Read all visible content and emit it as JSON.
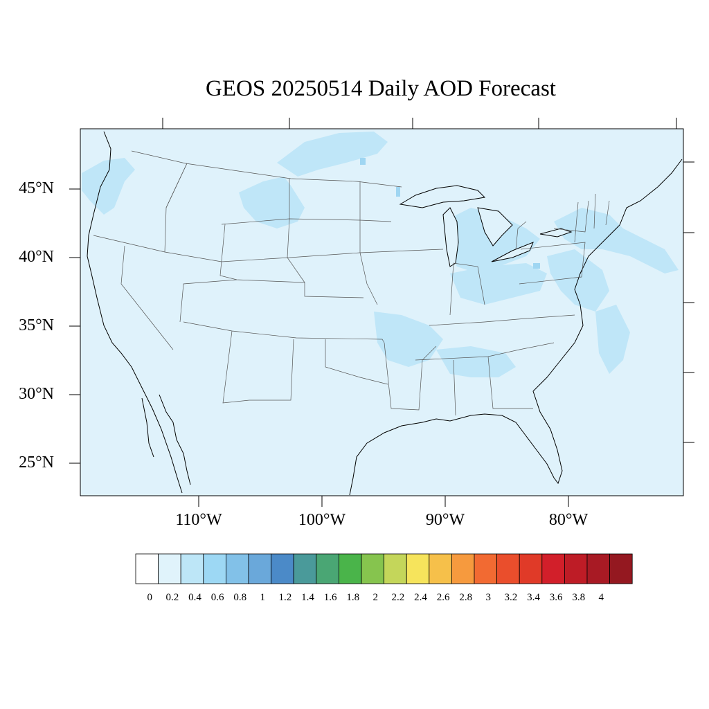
{
  "map": {
    "title": "GEOS 20250514 Daily AOD Forecast",
    "lat_labels": [
      "45°N",
      "40°N",
      "35°N",
      "30°N",
      "25°N"
    ],
    "lon_labels": [
      "110°W",
      "100°W",
      "90°W",
      "80°W"
    ],
    "background_value_color": "#dff2fb",
    "elevated_value_color": "#bfe6f8",
    "peak_value_color": "#9fd6f2"
  },
  "colorbar": {
    "labels": [
      "0",
      "0.2",
      "0.4",
      "0.6",
      "0.8",
      "1",
      "1.2",
      "1.4",
      "1.6",
      "1.8",
      "2",
      "2.2",
      "2.4",
      "2.6",
      "2.8",
      "3",
      "3.2",
      "3.4",
      "3.6",
      "3.8",
      "4"
    ],
    "colors": [
      "#ffffff",
      "#e0f3fb",
      "#bde6f7",
      "#9dd8f4",
      "#82c1e8",
      "#6aa8da",
      "#4b8ac8",
      "#4a9a9a",
      "#4aa674",
      "#4ab44a",
      "#86c44e",
      "#c4d65a",
      "#f6e45c",
      "#f6c04a",
      "#f69a3e",
      "#f26a32",
      "#ea4e2c",
      "#e03a28",
      "#d21f2a",
      "#be1c26",
      "#a81a24",
      "#941820"
    ]
  }
}
